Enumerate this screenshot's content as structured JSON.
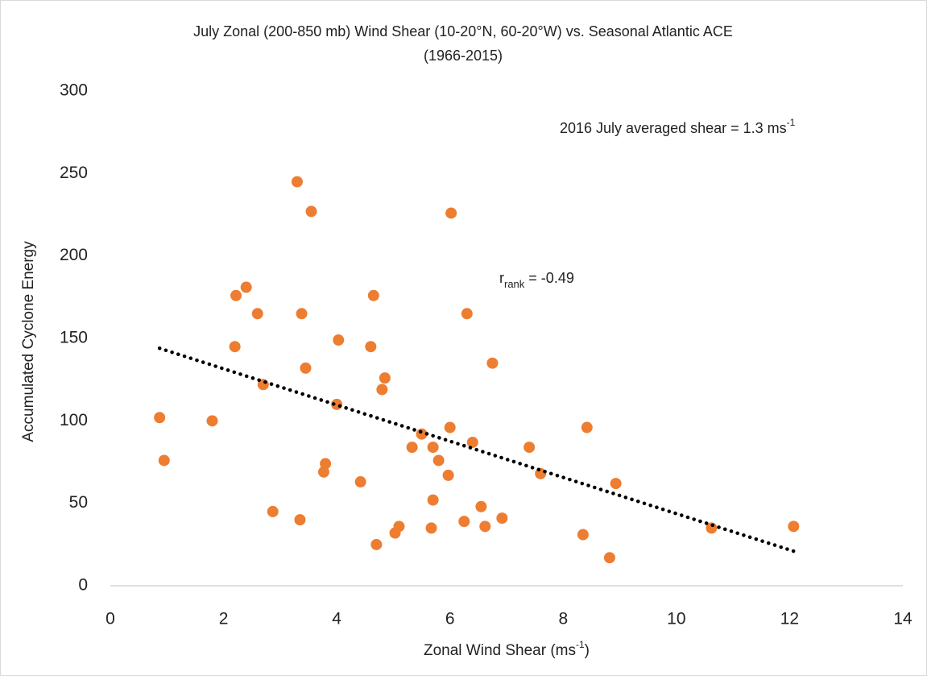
{
  "chart_data": {
    "type": "scatter",
    "title": [
      "July Zonal (200-850 mb) Wind Shear (10-20°N, 60-20°W) vs. Seasonal Atlantic ACE",
      "(1966-2015)"
    ],
    "x_label": {
      "base": "Zonal Wind Shear (ms",
      "sup": "-1",
      "after": ")"
    },
    "y_label": "Accumulated Cyclone Energy",
    "annotations": [
      {
        "base": "2016 July averaged  shear  = 1.3 ms",
        "sup": "-1"
      },
      {
        "base": "r",
        "sub": "rank",
        "after": " = -0.49"
      }
    ],
    "color": "#ED7D31",
    "x": [
      0.87,
      0.95,
      1.8,
      2.2,
      2.22,
      2.4,
      2.6,
      2.7,
      2.87,
      3.3,
      3.35,
      3.38,
      3.45,
      3.55,
      3.77,
      3.8,
      4.0,
      4.03,
      4.42,
      4.6,
      4.65,
      4.7,
      4.8,
      4.85,
      5.03,
      5.1,
      5.33,
      5.5,
      5.67,
      5.7,
      5.7,
      5.8,
      5.97,
      6.0,
      6.02,
      6.25,
      6.3,
      6.4,
      6.55,
      6.62,
      6.75,
      6.92,
      7.4,
      7.6,
      8.35,
      8.42,
      8.82,
      8.93,
      10.62,
      12.07
    ],
    "values": [
      102,
      76,
      100,
      145,
      176,
      181,
      165,
      122,
      45,
      245,
      40,
      165,
      132,
      227,
      69,
      74,
      110,
      149,
      63,
      145,
      176,
      25,
      119,
      126,
      32,
      36,
      84,
      92,
      35,
      52,
      84,
      76,
      67,
      96,
      226,
      39,
      165,
      87,
      48,
      36,
      135,
      41,
      84,
      68,
      31,
      96,
      17,
      62,
      35,
      36
    ],
    "trendline": {
      "x": [
        0.87,
        12.07
      ],
      "y": [
        144,
        21
      ],
      "color": "#000000"
    },
    "xlim": [
      0,
      14
    ],
    "ylim": [
      0,
      300
    ],
    "xticks": [
      0,
      2,
      4,
      6,
      8,
      10,
      12,
      14
    ],
    "yticks": [
      0,
      50,
      100,
      150,
      200,
      250,
      300
    ],
    "grid": false
  }
}
